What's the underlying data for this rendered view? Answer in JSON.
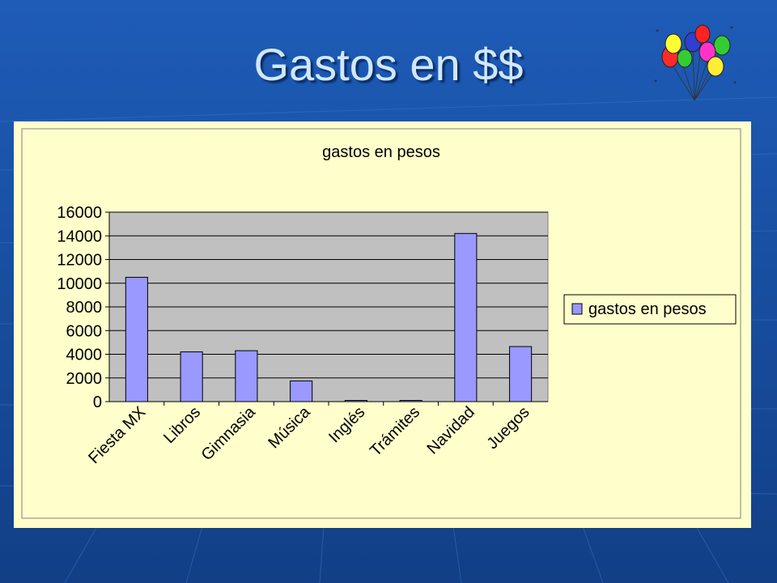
{
  "slide": {
    "title": "Gastos en $$",
    "decoration": "balloons-icon"
  },
  "colors": {
    "background": "#1a4fa0",
    "chart_area": "#ffffcc",
    "plot_area": "#c0c0c0",
    "bar_fill": "#9999ff",
    "bar_stroke": "#000000"
  },
  "chart_data": {
    "type": "bar",
    "title": "gastos en pesos",
    "xlabel": "",
    "ylabel": "",
    "categories": [
      "Fiesta MX",
      "Libros",
      "Gimnasia",
      "Música",
      "Inglés",
      "Trámites",
      "Navidad",
      "Juegos"
    ],
    "series": [
      {
        "name": "gastos en pesos",
        "values": [
          10500,
          4200,
          4300,
          1750,
          100,
          100,
          14200,
          4650
        ]
      }
    ],
    "ylim": [
      0,
      16000
    ],
    "yticks": [
      0,
      2000,
      4000,
      6000,
      8000,
      10000,
      12000,
      14000,
      16000
    ],
    "grid": true,
    "legend": "right"
  }
}
